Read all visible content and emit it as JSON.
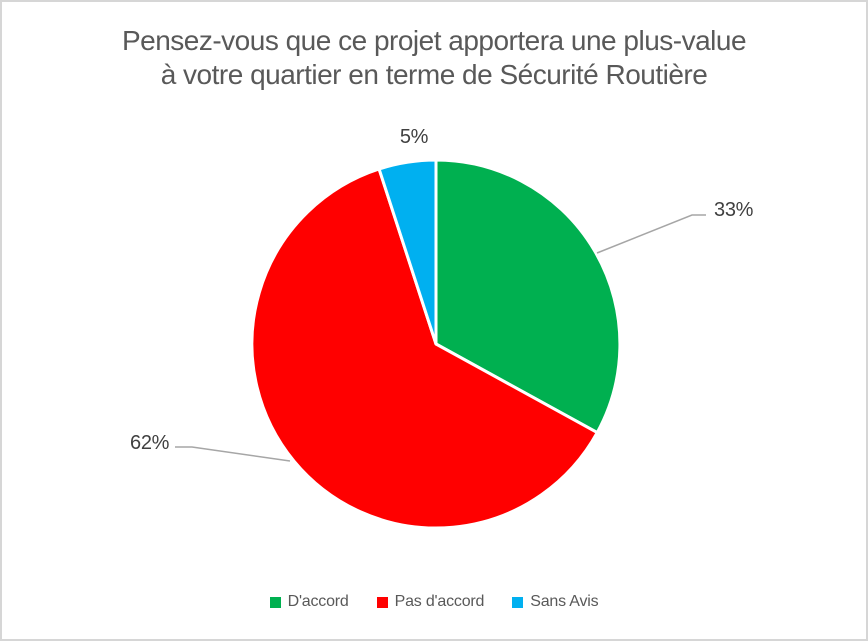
{
  "chart_data": {
    "type": "pie",
    "title": "Pensez-vous que ce projet apportera une plus-value à votre quartier en terme de Sécurité Routière",
    "title_lines": [
      "Pensez-vous que ce projet apportera une plus-value",
      "à votre quartier en terme de Sécurité Routière"
    ],
    "slices": [
      {
        "name": "D'accord",
        "value": 33,
        "label": "33%",
        "color": "#00B050"
      },
      {
        "name": "Pas d'accord",
        "value": 62,
        "label": "62%",
        "color": "#FF0000"
      },
      {
        "name": "Sans Avis",
        "value": 5,
        "label": "5%",
        "color": "#00B0F0"
      }
    ],
    "start_angle_deg": 0,
    "direction": "clockwise",
    "legend_position": "bottom",
    "data_labels": "outside-percent"
  },
  "styles": {
    "title_color": "#595959",
    "label_color": "#404040",
    "legend_text_color": "#595959",
    "leader_line_color": "#A6A6A6",
    "frame_border_color": "#D6D6D6",
    "background_color": "#FFFFFF",
    "slice_border_color": "#FFFFFF"
  }
}
